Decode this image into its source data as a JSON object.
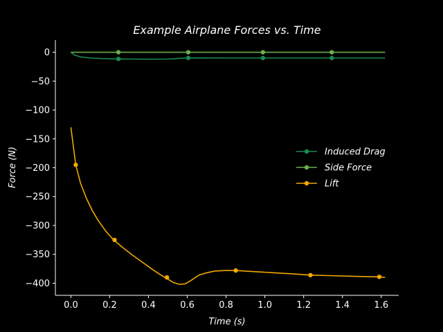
{
  "chart_data": {
    "type": "line",
    "title": "Example Airplane Forces vs. Time",
    "xlabel": "Time (s)",
    "ylabel": "Force (N)",
    "xlim": [
      -0.08,
      1.69
    ],
    "ylim": [
      -421,
      21
    ],
    "xticks": [
      0.0,
      0.2,
      0.4,
      0.6,
      0.8,
      1.0,
      1.2,
      1.4,
      1.6
    ],
    "xtick_labels": [
      "0.0",
      "0.2",
      "0.4",
      "0.6",
      "0.8",
      "1.0",
      "1.2",
      "1.4",
      "1.6"
    ],
    "yticks": [
      0,
      -50,
      -100,
      -150,
      -200,
      -250,
      -300,
      -350,
      -400
    ],
    "ytick_labels": [
      "0",
      "−50",
      "−100",
      "−150",
      "−200",
      "−250",
      "−300",
      "−350",
      "−400"
    ],
    "grid": false,
    "legend_position": "center-right",
    "series": [
      {
        "name": "Induced Drag",
        "color": "#1a8a4f",
        "x": [
          0.0,
          0.02,
          0.05,
          0.1,
          0.15,
          0.2,
          0.245,
          0.3,
          0.4,
          0.5,
          0.55,
          0.6,
          0.7,
          0.8,
          0.99,
          1.2,
          1.345,
          1.5,
          1.62
        ],
        "y": [
          0,
          -5,
          -8,
          -10,
          -10.8,
          -11.3,
          -11.6,
          -11.8,
          -12,
          -11.8,
          -10.8,
          -9.8,
          -9.9,
          -10,
          -10,
          -10,
          -10,
          -10,
          -10
        ],
        "markers_x": [
          0.245,
          0.605,
          0.99,
          1.345
        ],
        "markers_y": [
          -11.6,
          -9.8,
          -10,
          -10
        ]
      },
      {
        "name": "Side Force",
        "color": "#6ab04c",
        "x": [
          0.0,
          0.245,
          0.605,
          0.99,
          1.345,
          1.62
        ],
        "y": [
          0,
          0,
          0,
          0,
          0,
          0
        ],
        "markers_x": [
          0.245,
          0.605,
          0.99,
          1.345
        ],
        "markers_y": [
          0,
          0,
          0,
          0
        ]
      },
      {
        "name": "Lift",
        "color": "#f2a900",
        "x": [
          0.0,
          0.025,
          0.05,
          0.08,
          0.11,
          0.14,
          0.18,
          0.22,
          0.27,
          0.32,
          0.37,
          0.42,
          0.46,
          0.5,
          0.53,
          0.56,
          0.59,
          0.62,
          0.66,
          0.7,
          0.74,
          0.8,
          0.85,
          0.95,
          1.05,
          1.15,
          1.235,
          1.35,
          1.45,
          1.59,
          1.62
        ],
        "y": [
          -130,
          -195,
          -227,
          -253,
          -274,
          -291,
          -310,
          -325,
          -339,
          -352,
          -364,
          -376,
          -385,
          -393,
          -399,
          -402,
          -401,
          -395,
          -386,
          -382,
          -379,
          -378,
          -378,
          -380,
          -382,
          -384,
          -386,
          -387,
          -388,
          -389,
          -390
        ],
        "markers_x": [
          0.025,
          0.225,
          0.495,
          0.85,
          1.235,
          1.59
        ],
        "markers_y": [
          -195,
          -325,
          -390,
          -378,
          -386,
          -389
        ]
      }
    ]
  }
}
